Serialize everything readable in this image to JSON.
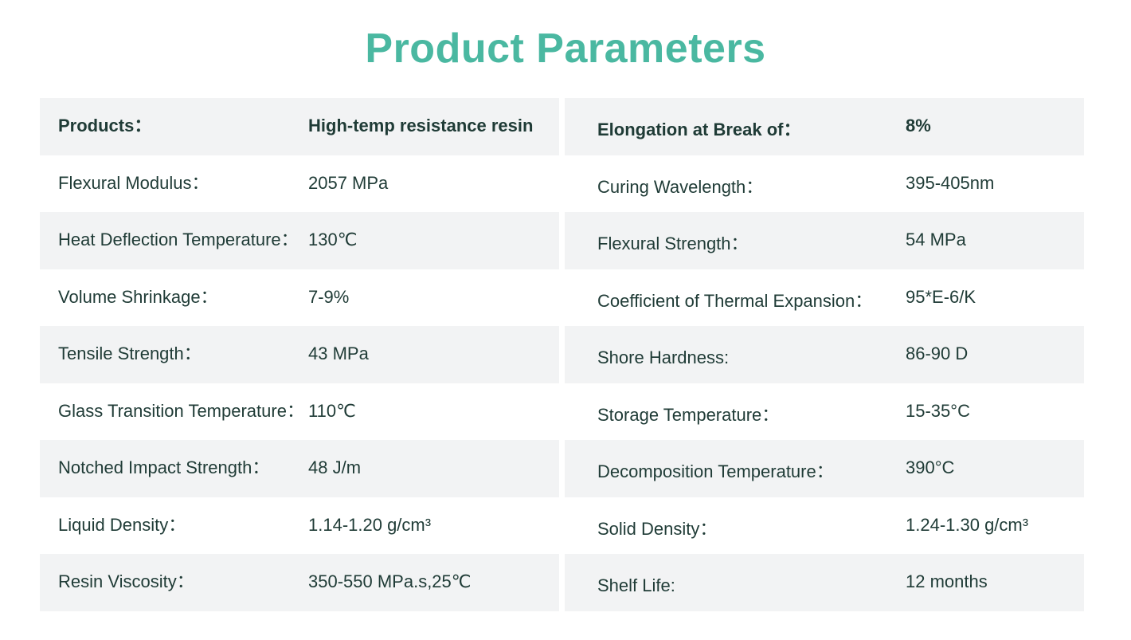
{
  "page": {
    "title": "Product Parameters"
  },
  "left_table": {
    "rows": [
      {
        "label": "Products：",
        "value": "High-temp resistance resin"
      },
      {
        "label": "Flexural Modulus：",
        "value": "2057 MPa"
      },
      {
        "label": "Heat Deflection Temperature：",
        "value": "130℃"
      },
      {
        "label": "Volume Shrinkage：",
        "value": "7-9%"
      },
      {
        "label": "Tensile Strength：",
        "value": "43 MPa"
      },
      {
        "label": "Glass Transition Temperature：",
        "value": "110℃"
      },
      {
        "label": "Notched Impact Strength：",
        "value": "48 J/m"
      },
      {
        "label": "Liquid Density：",
        "value": "1.14-1.20 g/cm³"
      },
      {
        "label": "Resin Viscosity：",
        "value": "350-550 MPa.s,25℃"
      }
    ]
  },
  "right_table": {
    "rows": [
      {
        "label": "Elongation at Break of：",
        "value": "8%"
      },
      {
        "label": "Curing Wavelength：",
        "value": "395-405nm"
      },
      {
        "label": "Flexural Strength：",
        "value": "54 MPa"
      },
      {
        "label": "Coefficient of Thermal Expansion：",
        "value": "95*E-6/K"
      },
      {
        "label": "Shore Hardness:",
        "value": "86-90 D"
      },
      {
        "label": "Storage Temperature：",
        "value": "15-35°C"
      },
      {
        "label": "Decomposition Temperature：",
        "value": "390°C"
      },
      {
        "label": "Solid Density：",
        "value": "1.24-1.30 g/cm³"
      },
      {
        "label": "Shelf Life:",
        "value": "12 months"
      }
    ]
  },
  "colors": {
    "title": "#4ab8a1",
    "text": "#1f3b36",
    "row_shade": "#f2f3f4",
    "background": "#ffffff"
  }
}
